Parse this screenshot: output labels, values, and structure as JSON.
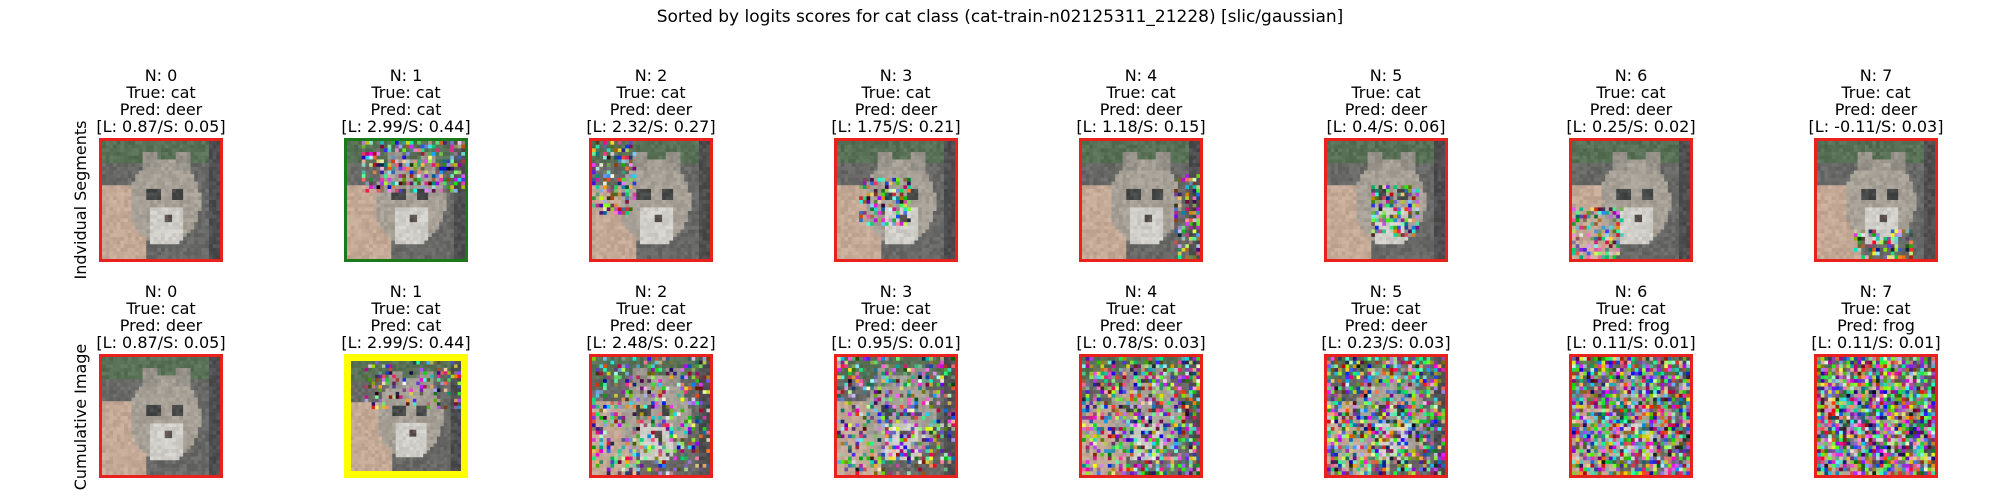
{
  "figure": {
    "title": "Sorted by logits scores for cat class (cat-train-n02125311_21228) [slic/gaussian]"
  },
  "rows": [
    {
      "label": "Indvidual Segments",
      "panels": [
        {
          "n": "N: 0",
          "true_label": "True: cat",
          "pred": "Pred: deer",
          "scores": "[L: 0.87/S: 0.05]",
          "frame": "red",
          "noise": 0.0,
          "region": "none"
        },
        {
          "n": "N: 1",
          "true_label": "True: cat",
          "pred": "Pred: cat",
          "scores": "[L: 2.99/S: 0.44]",
          "frame": "green",
          "noise": 0.5,
          "region": "top"
        },
        {
          "n": "N: 2",
          "true_label": "True: cat",
          "pred": "Pred: deer",
          "scores": "[L: 2.32/S: 0.27]",
          "frame": "red",
          "noise": 0.5,
          "region": "left"
        },
        {
          "n": "N: 3",
          "true_label": "True: cat",
          "pred": "Pred: deer",
          "scores": "[L: 1.75/S: 0.21]",
          "frame": "red",
          "noise": 0.5,
          "region": "center"
        },
        {
          "n": "N: 4",
          "true_label": "True: cat",
          "pred": "Pred: deer",
          "scores": "[L: 1.18/S: 0.15]",
          "frame": "red",
          "noise": 0.5,
          "region": "right"
        },
        {
          "n": "N: 5",
          "true_label": "True: cat",
          "pred": "Pred: deer",
          "scores": "[L: 0.4/S: 0.06]",
          "frame": "red",
          "noise": 0.5,
          "region": "mid"
        },
        {
          "n": "N: 6",
          "true_label": "True: cat",
          "pred": "Pred: deer",
          "scores": "[L: 0.25/S: 0.02]",
          "frame": "red",
          "noise": 0.5,
          "region": "bottom-left"
        },
        {
          "n": "N: 7",
          "true_label": "True: cat",
          "pred": "Pred: deer",
          "scores": "[L: -0.11/S: 0.03]",
          "frame": "red",
          "noise": 0.5,
          "region": "bottom"
        }
      ]
    },
    {
      "label": "Cumulative Image",
      "panels": [
        {
          "n": "N: 0",
          "true_label": "True: cat",
          "pred": "Pred: deer",
          "scores": "[L: 0.87/S: 0.05]",
          "frame": "red",
          "noise": 0.0,
          "region": "none"
        },
        {
          "n": "N: 1",
          "true_label": "True: cat",
          "pred": "Pred: cat",
          "scores": "[L: 2.99/S: 0.44]",
          "frame": "yellow",
          "noise": 0.3,
          "region": "top"
        },
        {
          "n": "N: 2",
          "true_label": "True: cat",
          "pred": "Pred: deer",
          "scores": "[L: 2.48/S: 0.22]",
          "frame": "red",
          "noise": 0.35,
          "region": "all"
        },
        {
          "n": "N: 3",
          "true_label": "True: cat",
          "pred": "Pred: deer",
          "scores": "[L: 0.95/S: 0.01]",
          "frame": "red",
          "noise": 0.45,
          "region": "all"
        },
        {
          "n": "N: 4",
          "true_label": "True: cat",
          "pred": "Pred: deer",
          "scores": "[L: 0.78/S: 0.03]",
          "frame": "red",
          "noise": 0.55,
          "region": "all"
        },
        {
          "n": "N: 5",
          "true_label": "True: cat",
          "pred": "Pred: deer",
          "scores": "[L: 0.23/S: 0.03]",
          "frame": "red",
          "noise": 0.65,
          "region": "all"
        },
        {
          "n": "N: 6",
          "true_label": "True: cat",
          "pred": "Pred: frog",
          "scores": "[L: 0.11/S: 0.01]",
          "frame": "red",
          "noise": 0.78,
          "region": "all"
        },
        {
          "n": "N: 7",
          "true_label": "True: cat",
          "pred": "Pred: frog",
          "scores": "[L: 0.11/S: 0.01]",
          "frame": "red",
          "noise": 0.9,
          "region": "all"
        }
      ]
    }
  ],
  "colors": {
    "red": "#e8211c",
    "green": "#1a7a1a",
    "yellow": "#ffff00"
  }
}
